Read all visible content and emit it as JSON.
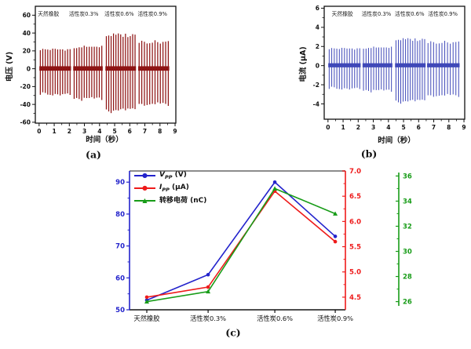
{
  "captions": {
    "a": "(a)",
    "b": "(b)",
    "c": "(c)"
  },
  "chart_data": [
    {
      "id": "a",
      "type": "spike-train",
      "title": "",
      "xlabel": "时间（秒）",
      "ylabel": "电压 (V)",
      "line_color": "#8e1414",
      "xlim": [
        -0.25,
        9.05
      ],
      "ylim": [
        -61,
        70
      ],
      "xticks": [
        0,
        1,
        2,
        3,
        4,
        5,
        6,
        7,
        8,
        9
      ],
      "yticks": [
        -60,
        -40,
        -20,
        0,
        20,
        40,
        60
      ],
      "yminor": [
        -50,
        -30,
        -10,
        10,
        30,
        50
      ],
      "annotations": [
        {
          "text": "天然橡胶",
          "x": 0.62
        },
        {
          "text": "活性炭0.3%",
          "x": 2.95
        },
        {
          "text": "活性炭0.6%",
          "x": 5.3
        },
        {
          "text": "活性炭0.9%",
          "x": 7.5
        }
      ],
      "baseline_band": [
        -2.2,
        2.8
      ],
      "bursts": [
        {
          "label": "天然橡胶",
          "t_start": 0.08,
          "t_end": 2.05,
          "spike_count": 13,
          "peak_positive": 23,
          "peak_negative": -30
        },
        {
          "label": "活性炭0.3%",
          "t_start": 2.32,
          "t_end": 4.15,
          "spike_count": 12,
          "peak_positive": 26,
          "peak_negative": -36
        },
        {
          "label": "活性炭0.6%",
          "t_start": 4.45,
          "t_end": 6.35,
          "spike_count": 13,
          "peak_positive": 40,
          "peak_negative": -50
        },
        {
          "label": "活性炭0.9%",
          "t_start": 6.62,
          "t_end": 8.55,
          "spike_count": 12,
          "peak_positive": 32,
          "peak_negative": -42
        }
      ]
    },
    {
      "id": "b",
      "type": "spike-train",
      "title": "",
      "xlabel": "时间（秒）",
      "ylabel": "电流 (μA)",
      "line_color": "#3f48b8",
      "xlim": [
        -0.25,
        9.05
      ],
      "ylim": [
        -5.6,
        6.2
      ],
      "xticks": [
        0,
        1,
        2,
        3,
        4,
        5,
        6,
        7,
        8,
        9
      ],
      "yticks": [
        -4,
        -2,
        0,
        2,
        4,
        6
      ],
      "yminor": [
        -3,
        -1,
        1,
        3,
        5
      ],
      "annotations": [
        {
          "text": "天然橡胶",
          "x": 0.95
        },
        {
          "text": "活性炭0.3%",
          "x": 3.2
        },
        {
          "text": "活性炭0.6%",
          "x": 5.4
        },
        {
          "text": "活性炭0.9%",
          "x": 7.6
        }
      ],
      "baseline_band": [
        -0.18,
        0.25
      ],
      "bursts": [
        {
          "label": "天然橡胶",
          "t_start": 0.08,
          "t_end": 2.1,
          "spike_count": 13,
          "peak_positive": 1.9,
          "peak_negative": -2.5
        },
        {
          "label": "活性炭0.3%",
          "t_start": 2.35,
          "t_end": 4.2,
          "spike_count": 12,
          "peak_positive": 2.0,
          "peak_negative": -2.8
        },
        {
          "label": "活性炭0.6%",
          "t_start": 4.5,
          "t_end": 6.4,
          "spike_count": 13,
          "peak_positive": 2.9,
          "peak_negative": -4.0
        },
        {
          "label": "活性炭0.9%",
          "t_start": 6.62,
          "t_end": 8.65,
          "spike_count": 12,
          "peak_positive": 2.6,
          "peak_negative": -3.3
        }
      ]
    },
    {
      "id": "c",
      "type": "line",
      "title": "",
      "categories": [
        "天然橡胶",
        "活性炭0.3%",
        "活性炭0.6%",
        "活性炭0.9%"
      ],
      "series": [
        {
          "name": "Vpp (V)",
          "legend_main": "V",
          "legend_sub": "PP",
          "legend_unit": " (V)",
          "axis": "left",
          "color": "#2323cc",
          "marker": "circle",
          "values": [
            53,
            61,
            90,
            73
          ]
        },
        {
          "name": "Ipp (μA)",
          "legend_main": "I",
          "legend_sub": "PP",
          "legend_unit": " (μA)",
          "axis": "right",
          "color": "#ee1b1b",
          "marker": "circle",
          "values": [
            4.5,
            4.7,
            6.6,
            5.6
          ]
        },
        {
          "name": "转移电荷 (nC)",
          "legend_main": "转移电荷",
          "legend_sub": "",
          "legend_unit": " (nC)",
          "axis": "far_right",
          "color": "#189c18",
          "marker": "triangle",
          "values": [
            26,
            26.8,
            35,
            33
          ]
        }
      ],
      "axes": {
        "left": {
          "color": "#2323cc",
          "range": [
            50,
            93.5
          ],
          "ticks": [
            50,
            60,
            70,
            80,
            90
          ],
          "minor": [
            55,
            65,
            75,
            85
          ],
          "format": "int"
        },
        "right": {
          "color": "#ee1b1b",
          "range": [
            4.25,
            7.0
          ],
          "ticks": [
            4.5,
            5.0,
            5.5,
            6.0,
            6.5,
            7.0
          ],
          "minor": [
            4.75,
            5.25,
            5.75,
            6.25,
            6.75
          ],
          "format": "fixed1"
        },
        "far_right": {
          "color": "#189c18",
          "range": [
            25.35,
            36.4
          ],
          "ticks": [
            26,
            28,
            30,
            32,
            34,
            36
          ],
          "minor": [
            27,
            29,
            31,
            33,
            35
          ],
          "format": "int"
        }
      },
      "top_spine": "#8c8c8c",
      "bottom_spine": "#141414"
    }
  ]
}
